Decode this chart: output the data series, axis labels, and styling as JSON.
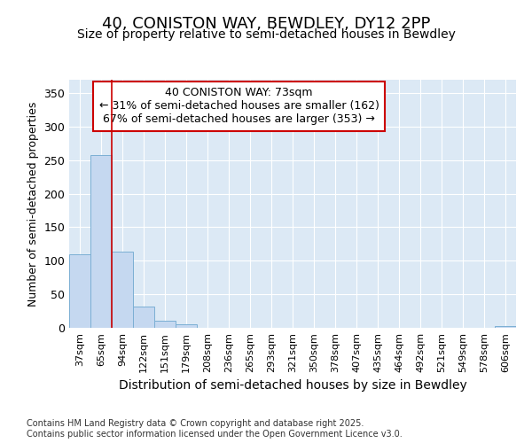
{
  "title_line1": "40, CONISTON WAY, BEWDLEY, DY12 2PP",
  "title_line2": "Size of property relative to semi-detached houses in Bewdley",
  "xlabel": "Distribution of semi-detached houses by size in Bewdley",
  "ylabel": "Number of semi-detached properties",
  "categories": [
    "37sqm",
    "65sqm",
    "94sqm",
    "122sqm",
    "151sqm",
    "179sqm",
    "208sqm",
    "236sqm",
    "265sqm",
    "293sqm",
    "321sqm",
    "350sqm",
    "378sqm",
    "407sqm",
    "435sqm",
    "464sqm",
    "492sqm",
    "521sqm",
    "549sqm",
    "578sqm",
    "606sqm"
  ],
  "values": [
    110,
    258,
    113,
    32,
    10,
    5,
    0,
    0,
    0,
    0,
    0,
    0,
    0,
    0,
    0,
    0,
    0,
    0,
    0,
    0,
    2
  ],
  "bar_color": "#c5d8f0",
  "bar_edge_color": "#7bafd4",
  "bar_width": 1.0,
  "ylim": [
    0,
    370
  ],
  "yticks": [
    0,
    50,
    100,
    150,
    200,
    250,
    300,
    350
  ],
  "red_line_x": 1.5,
  "annotation_text": "40 CONISTON WAY: 73sqm\n← 31% of semi-detached houses are smaller (162)\n67% of semi-detached houses are larger (353) →",
  "annotation_box_color": "#ffffff",
  "annotation_box_edge": "#cc0000",
  "footnote": "Contains HM Land Registry data © Crown copyright and database right 2025.\nContains public sector information licensed under the Open Government Licence v3.0.",
  "fig_bg_color": "#ffffff",
  "plot_bg_color": "#dce9f5",
  "grid_color": "#ffffff",
  "title_fontsize": 13,
  "subtitle_fontsize": 10,
  "tick_fontsize": 8,
  "ylabel_fontsize": 9,
  "xlabel_fontsize": 10,
  "annot_fontsize": 9
}
